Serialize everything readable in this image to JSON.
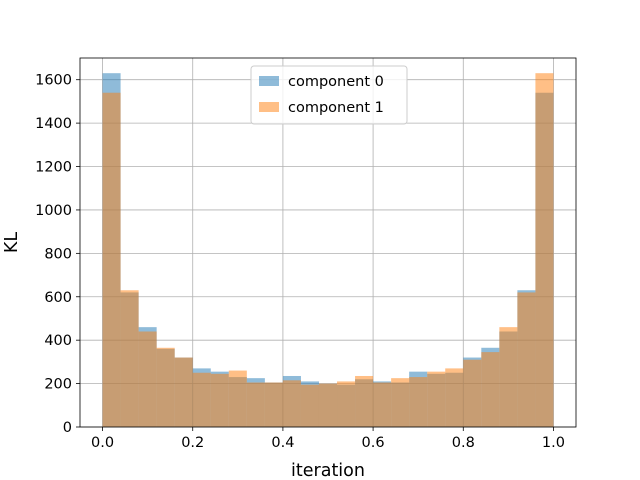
{
  "chart_data": {
    "type": "bar",
    "xlabel": "iteration",
    "ylabel": "KL",
    "xlim": [
      -0.05,
      1.05
    ],
    "ylim": [
      0,
      1700
    ],
    "xticks": [
      "0.0",
      "0.2",
      "0.4",
      "0.6",
      "0.8",
      "1.0"
    ],
    "xtick_values": [
      0.0,
      0.2,
      0.4,
      0.6,
      0.8,
      1.0
    ],
    "yticks": [
      "0",
      "200",
      "400",
      "600",
      "800",
      "1000",
      "1200",
      "1400",
      "1600"
    ],
    "ytick_values": [
      0,
      200,
      400,
      600,
      800,
      1000,
      1200,
      1400,
      1600
    ],
    "grid": true,
    "legend_position": "top-center",
    "bin_edges": [
      0.0,
      0.04,
      0.08,
      0.12,
      0.16,
      0.2,
      0.24,
      0.28,
      0.32,
      0.36,
      0.4,
      0.44,
      0.48,
      0.52,
      0.56,
      0.6,
      0.64,
      0.68,
      0.72,
      0.76,
      0.8,
      0.84,
      0.88,
      0.92,
      0.96,
      1.0
    ],
    "series": [
      {
        "name": "component 0",
        "color": "#1f77b4",
        "values": [
          1630,
          620,
          460,
          360,
          320,
          270,
          255,
          230,
          225,
          205,
          235,
          210,
          200,
          195,
          220,
          210,
          205,
          255,
          245,
          250,
          320,
          365,
          440,
          630,
          1540
        ]
      },
      {
        "name": "component 1",
        "color": "#ff7f0e",
        "values": [
          1540,
          630,
          440,
          365,
          320,
          250,
          245,
          260,
          205,
          205,
          215,
          195,
          200,
          210,
          235,
          205,
          225,
          230,
          255,
          270,
          310,
          345,
          460,
          620,
          1630
        ]
      }
    ]
  }
}
